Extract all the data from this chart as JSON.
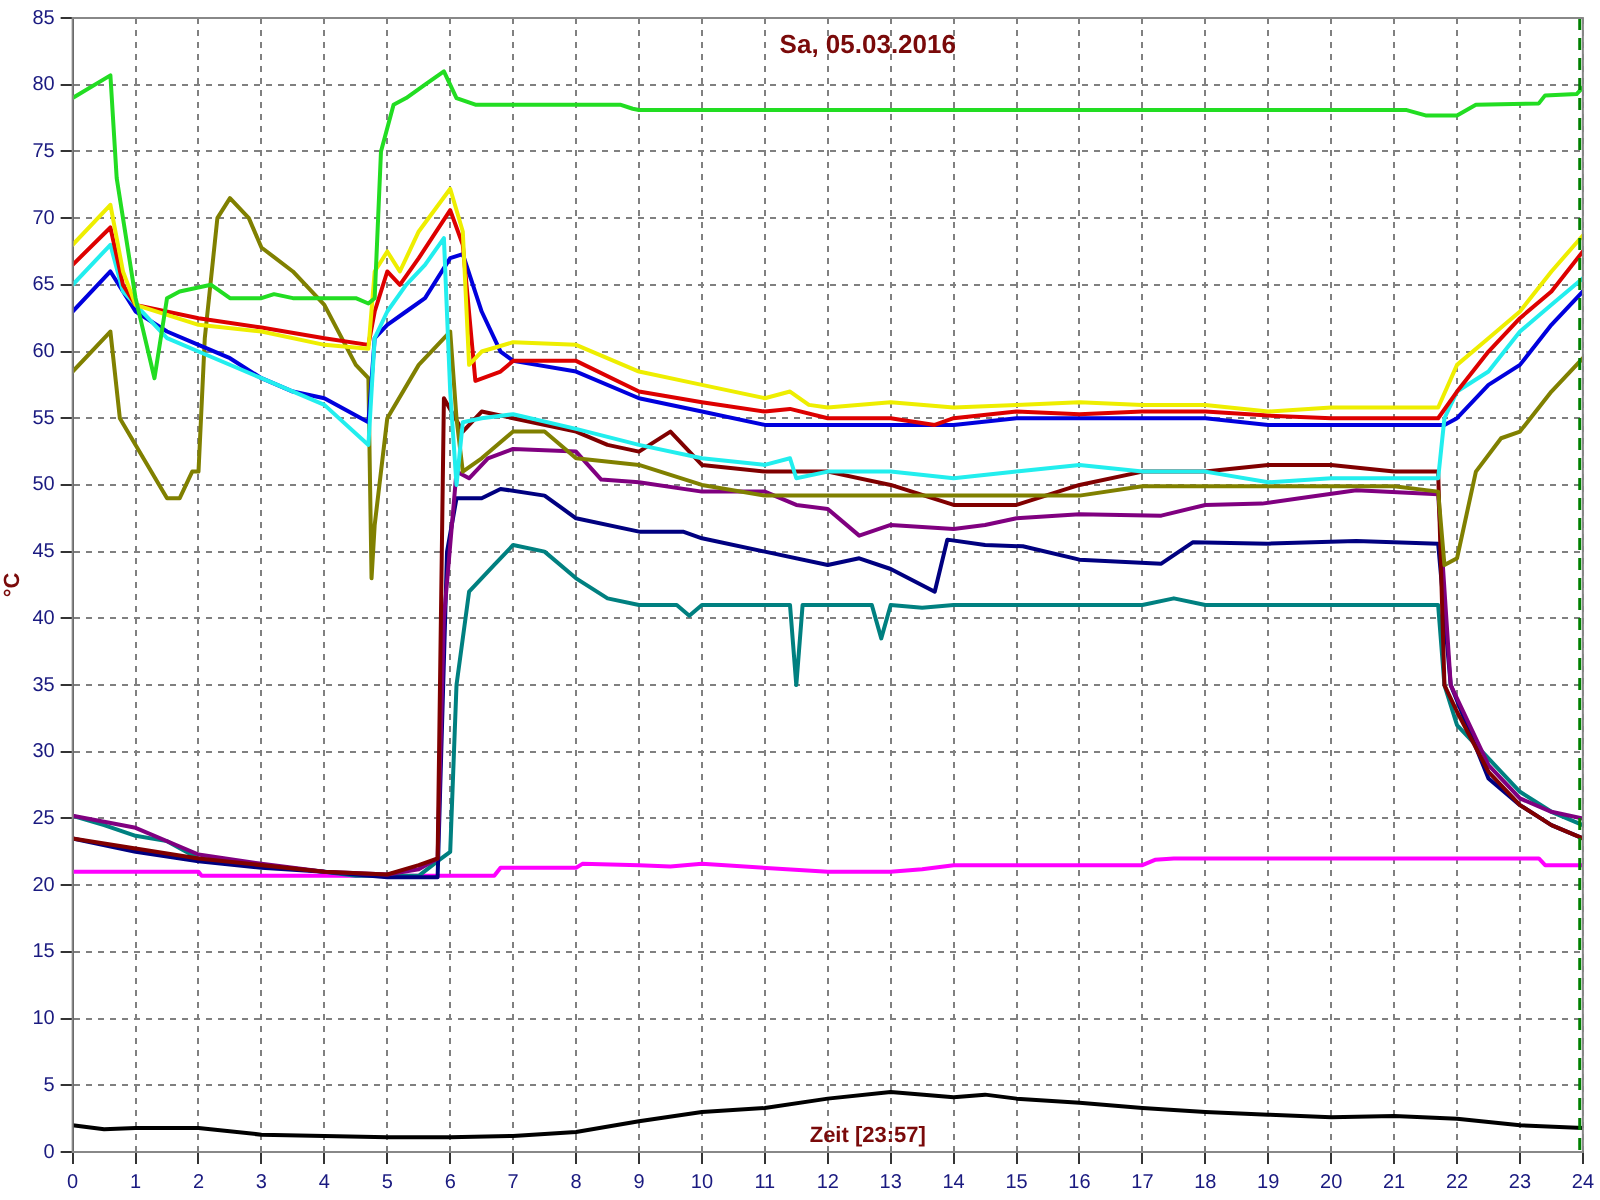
{
  "chart_data": {
    "type": "line",
    "title": "Sa, 05.03.2016",
    "xlabel": "Zeit [23:57]",
    "ylabel": "°C",
    "xlim": [
      0,
      24
    ],
    "ylim": [
      0,
      85
    ],
    "xticks": [
      0,
      1,
      2,
      3,
      4,
      5,
      6,
      7,
      8,
      9,
      10,
      11,
      12,
      13,
      14,
      15,
      16,
      17,
      18,
      19,
      20,
      21,
      22,
      23,
      24
    ],
    "yticks": [
      0,
      5,
      10,
      15,
      20,
      25,
      30,
      35,
      40,
      45,
      50,
      55,
      60,
      65,
      70,
      75,
      80,
      85
    ],
    "grid": true,
    "legend": false,
    "marker": "none",
    "line_style": "solid",
    "ref_lines": [
      {
        "axis": "x",
        "value": 23.95,
        "color": "#008000",
        "line_style": "dashed"
      }
    ],
    "series": [
      {
        "color": "#22dd22",
        "x": [
          0,
          0.6,
          0.7,
          1.0,
          1.3,
          1.5,
          1.7,
          2.2,
          2.5,
          3,
          3.2,
          3.5,
          4.5,
          4.7,
          4.8,
          4.9,
          5.1,
          5.3,
          5.6,
          5.9,
          6.1,
          6.4,
          7,
          8.7,
          8.9,
          9,
          12,
          15,
          18,
          21.2,
          21.5,
          22,
          22.3,
          23.3,
          23.4,
          23.9,
          24
        ],
        "values": [
          79,
          80.7,
          73,
          64,
          58,
          64,
          64.5,
          65,
          64,
          64,
          64.3,
          64,
          64,
          63.6,
          64,
          75,
          78.5,
          79,
          80,
          81,
          79,
          78.5,
          78.5,
          78.5,
          78.2,
          78.1,
          78.1,
          78.1,
          78.1,
          78.1,
          77.7,
          77.7,
          78.5,
          78.6,
          79.2,
          79.3,
          79.8
        ]
      },
      {
        "color": "#eeee00",
        "x": [
          0,
          0.6,
          0.8,
          1,
          2,
          3,
          4,
          4.7,
          4.8,
          5,
          5.2,
          5.5,
          6,
          6.2,
          6.3,
          6.5,
          7,
          8,
          9,
          10,
          11,
          11.4,
          11.7,
          12,
          13,
          14,
          15,
          16,
          17,
          18,
          19,
          20,
          21,
          21.7,
          22,
          22.5,
          23,
          23.5,
          24
        ],
        "values": [
          68,
          71,
          66,
          63.5,
          62,
          61.5,
          60.5,
          60.2,
          66,
          67.5,
          66,
          69,
          72.2,
          69,
          59,
          60,
          60.7,
          60.5,
          58.5,
          57.5,
          56.5,
          57,
          56,
          55.8,
          56.2,
          55.8,
          56,
          56.2,
          56,
          56,
          55.5,
          55.8,
          55.8,
          55.8,
          59,
          61,
          63,
          66,
          68.7
        ]
      },
      {
        "color": "#dd0000",
        "x": [
          0,
          0.6,
          0.8,
          1,
          2,
          3,
          4,
          4.7,
          4.8,
          5,
          5.2,
          5.5,
          6,
          6.2,
          6.4,
          6.8,
          7,
          8,
          9,
          10,
          11,
          11.4,
          12,
          13,
          13.7,
          14,
          15,
          16,
          17,
          18,
          19,
          20,
          21.7,
          22,
          22.5,
          23,
          23.5,
          24
        ],
        "values": [
          66.5,
          69.3,
          65,
          63.5,
          62.5,
          61.8,
          61,
          60.5,
          63,
          66,
          65,
          67,
          70.6,
          68,
          57.8,
          58.5,
          59.3,
          59.3,
          57,
          56.2,
          55.5,
          55.7,
          55,
          55,
          54.5,
          55,
          55.5,
          55.3,
          55.5,
          55.5,
          55.2,
          55,
          55,
          57,
          60,
          62.5,
          64.5,
          67.5
        ]
      },
      {
        "color": "#22eeee",
        "x": [
          0,
          0.6,
          0.8,
          1.5,
          2,
          3,
          4,
          4.7,
          4.8,
          5,
          5.3,
          5.6,
          5.9,
          6,
          6.1,
          6.2,
          6.5,
          7,
          8,
          9,
          10,
          11,
          11.4,
          11.5,
          12,
          13,
          14,
          15,
          16,
          17,
          18,
          19,
          20,
          21,
          21.7,
          21.8,
          22,
          22.5,
          23,
          23.5,
          24
        ],
        "values": [
          65,
          68,
          64.5,
          61,
          60,
          58,
          56,
          53,
          61,
          63,
          65,
          66.5,
          68.5,
          57,
          50,
          54.7,
          55,
          55.3,
          54.2,
          53,
          52,
          51.5,
          52,
          50.5,
          51,
          51,
          50.5,
          51,
          51.5,
          51,
          51,
          50.2,
          50.5,
          50.5,
          50.5,
          55,
          57,
          58.5,
          61.5,
          63.5,
          65.5
        ]
      },
      {
        "color": "#0000dd",
        "x": [
          0,
          0.6,
          0.8,
          1,
          1.5,
          2,
          2.5,
          3,
          3.5,
          4,
          4.7,
          4.8,
          5,
          5.3,
          5.6,
          6,
          6.2,
          6.5,
          6.8,
          7,
          8,
          9,
          10,
          11,
          12,
          13,
          14,
          15,
          16,
          17,
          18,
          19,
          20,
          21.8,
          22,
          22.5,
          23,
          23.5,
          24
        ],
        "values": [
          63,
          66,
          64.5,
          63,
          61.5,
          60.5,
          59.5,
          58,
          57,
          56.5,
          54.7,
          61,
          62,
          63,
          64,
          67,
          67.3,
          63,
          60,
          59.3,
          58.5,
          56.5,
          55.5,
          54.5,
          54.5,
          54.5,
          54.5,
          55,
          55,
          55,
          55,
          54.5,
          54.5,
          54.5,
          55,
          57.5,
          59,
          62,
          64.5
        ]
      },
      {
        "color": "#808000",
        "x": [
          0,
          0.6,
          0.75,
          1,
          1.5,
          1.7,
          1.9,
          2,
          2.1,
          2.3,
          2.5,
          2.8,
          3,
          3.5,
          4,
          4.5,
          4.7,
          4.75,
          4.8,
          5,
          5.5,
          6,
          6.1,
          6.2,
          6.5,
          7,
          7.5,
          8,
          9,
          10,
          11,
          13,
          15,
          16,
          17,
          19,
          21,
          21.7,
          21.8,
          22,
          22.3,
          22.7,
          23,
          23.5,
          24
        ],
        "values": [
          58.5,
          61.5,
          55,
          53,
          49,
          49,
          51,
          51,
          61,
          70,
          71.5,
          70,
          67.8,
          66,
          63.5,
          59,
          58,
          43,
          47,
          55,
          59,
          61.5,
          55,
          51,
          52,
          54,
          54,
          52,
          51.5,
          50,
          49.2,
          49.2,
          49.2,
          49.2,
          49.9,
          49.9,
          49.9,
          49.5,
          44,
          44.5,
          51,
          53.5,
          54,
          57,
          59.5
        ]
      },
      {
        "color": "#800000",
        "x": [
          0,
          2,
          4,
          5,
          5.5,
          5.8,
          5.9,
          6.2,
          6.5,
          7,
          8,
          8.5,
          9,
          9.5,
          10,
          11,
          12,
          13,
          14,
          15,
          16,
          17,
          18,
          19,
          20,
          21,
          21.7,
          21.8,
          22,
          22.5,
          23,
          23.5,
          24
        ],
        "values": [
          23.5,
          22,
          21,
          20.8,
          21.5,
          22,
          56.5,
          54,
          55.5,
          55,
          54,
          53,
          52.5,
          54,
          51.5,
          51,
          51,
          50,
          48.5,
          48.5,
          50,
          51,
          51,
          51.5,
          51.5,
          51,
          51,
          35,
          33,
          28.5,
          26,
          24.5,
          23.5
        ]
      },
      {
        "color": "#800080",
        "x": [
          0,
          1,
          2,
          3,
          4,
          5,
          5.5,
          5.8,
          5.9,
          6.1,
          6.3,
          6.6,
          7,
          8,
          8.4,
          9,
          10,
          11,
          11.5,
          12,
          12.5,
          13,
          14,
          14.5,
          15,
          16,
          17.3,
          18,
          18.9,
          19.5,
          20.4,
          21.7,
          21.9,
          22.5,
          23,
          23.5,
          24
        ],
        "values": [
          25.2,
          24.3,
          22.3,
          21.6,
          21,
          20.8,
          21.2,
          22,
          40,
          51,
          50.5,
          52,
          52.7,
          52.5,
          50.4,
          50.2,
          49.5,
          49.5,
          48.5,
          48.2,
          46.2,
          47,
          46.7,
          47,
          47.5,
          47.8,
          47.7,
          48.5,
          48.6,
          49,
          49.6,
          49.3,
          35,
          29,
          26.5,
          25.5,
          25
        ]
      },
      {
        "color": "#000080",
        "x": [
          0,
          1,
          2,
          3,
          4,
          5,
          5.8,
          5.95,
          6.1,
          6.5,
          6.8,
          7.5,
          8,
          9,
          9.7,
          10,
          11,
          12,
          12.5,
          13,
          13.7,
          13.9,
          14.5,
          15.1,
          16,
          17.3,
          17.8,
          19,
          20.4,
          21.7,
          21.9,
          22.5,
          23,
          23.5,
          24
        ],
        "values": [
          23.5,
          22.5,
          21.8,
          21.3,
          21,
          20.6,
          20.6,
          45,
          49,
          49,
          49.7,
          49.2,
          47.5,
          46.5,
          46.5,
          46,
          45,
          44,
          44.5,
          43.7,
          42,
          45.9,
          45.5,
          45.4,
          44.4,
          44.1,
          45.7,
          45.6,
          45.8,
          45.6,
          35,
          28,
          26,
          24.5,
          23.5
        ]
      },
      {
        "color": "#008080",
        "x": [
          0,
          0.5,
          1,
          1.5,
          2,
          3,
          4,
          4.5,
          5.5,
          5.8,
          6,
          6.1,
          6.3,
          6.7,
          7,
          7.5,
          8,
          8.5,
          9,
          9.6,
          9.8,
          10,
          11,
          11.4,
          11.5,
          11.6,
          12,
          12.7,
          12.85,
          13,
          13.5,
          14,
          15,
          16,
          17,
          17.5,
          18,
          21.7,
          21.8,
          22,
          22.5,
          23,
          23.5,
          24
        ],
        "values": [
          25.2,
          24.5,
          23.7,
          23.3,
          22,
          21.5,
          21,
          20.7,
          20.7,
          21.8,
          22.5,
          35,
          42,
          44,
          45.5,
          45,
          43,
          41.5,
          41,
          41,
          40.2,
          41,
          41,
          41,
          35,
          41,
          41,
          41,
          38.5,
          41,
          40.8,
          41,
          41,
          41,
          41,
          41.5,
          41,
          41,
          35,
          32,
          29.5,
          27,
          25.5,
          24.5
        ]
      },
      {
        "color": "#ff00ff",
        "x": [
          0,
          2,
          2.05,
          6.7,
          6.8,
          8,
          8.1,
          9,
          9.5,
          10,
          12,
          13,
          13.5,
          14,
          17,
          17.2,
          17.5,
          23.3,
          23.4,
          24
        ],
        "values": [
          21,
          21,
          20.7,
          20.7,
          21.3,
          21.3,
          21.6,
          21.5,
          21.4,
          21.6,
          21,
          21,
          21.2,
          21.5,
          21.5,
          21.9,
          22,
          22,
          21.5,
          21.5
        ]
      },
      {
        "color": "#000000",
        "x": [
          0,
          0.5,
          1,
          2,
          3,
          4,
          5,
          6,
          7,
          8,
          9,
          10,
          11,
          12,
          13,
          14,
          14.5,
          15,
          16,
          17,
          18,
          19,
          20,
          21,
          22,
          23,
          24
        ],
        "values": [
          2,
          1.7,
          1.8,
          1.8,
          1.3,
          1.2,
          1.1,
          1.1,
          1.2,
          1.5,
          2.3,
          3,
          3.3,
          4,
          4.5,
          4.1,
          4.3,
          4,
          3.7,
          3.3,
          3,
          2.8,
          2.6,
          2.7,
          2.5,
          2,
          1.8
        ]
      }
    ]
  }
}
